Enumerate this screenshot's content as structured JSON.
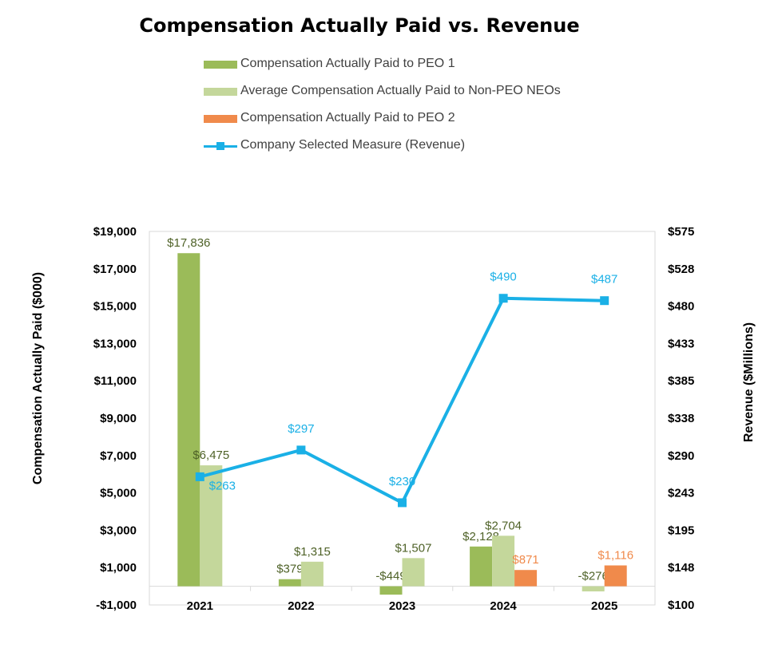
{
  "chart_data": {
    "type": "bar",
    "title": "Compensation Actually Paid vs. Revenue",
    "categories": [
      "2021",
      "2022",
      "2023",
      "2024",
      "2025"
    ],
    "ylabel": "Compensation Actually Paid ($000)",
    "y2label": "Revenue ($Millions)",
    "ylim": [
      -1000,
      19000
    ],
    "y2lim": [
      100,
      575
    ],
    "yticks": [
      "-$1,000",
      "$1,000",
      "$3,000",
      "$5,000",
      "$7,000",
      "$9,000",
      "$11,000",
      "$13,000",
      "$15,000",
      "$17,000",
      "$19,000"
    ],
    "y2ticks": [
      "$100",
      "$148",
      "$195",
      "$243",
      "$290",
      "$338",
      "$385",
      "$433",
      "$480",
      "$528",
      "$575"
    ],
    "legend_position": "top",
    "grid": false,
    "series": [
      {
        "name": "Compensation Actually Paid to PEO 1",
        "kind": "bar",
        "color": "#9bbb59",
        "values": [
          17836,
          379,
          -449,
          2128,
          null
        ],
        "labels": [
          "$17,836",
          "$379",
          "-$449",
          "$2,128",
          ""
        ]
      },
      {
        "name": "Average Compensation Actually Paid to Non-PEO NEOs",
        "kind": "bar",
        "color": "#c4d79b",
        "values": [
          6475,
          1315,
          1507,
          2704,
          -276
        ],
        "labels": [
          "$6,475",
          "$1,315",
          "$1,507",
          "$2,704",
          "-$276"
        ]
      },
      {
        "name": "Compensation Actually Paid to PEO 2",
        "kind": "bar",
        "color": "#f08a4b",
        "values": [
          null,
          null,
          null,
          871,
          1116
        ],
        "labels": [
          "",
          "",
          "",
          "$871",
          "$1,116"
        ]
      },
      {
        "name": "Company Selected Measure (Revenue)",
        "kind": "line",
        "axis": "right",
        "color": "#1ab0e6",
        "values": [
          263,
          297,
          230,
          490,
          487
        ],
        "labels": [
          "$263",
          "$297",
          "$230",
          "$490",
          "$487"
        ]
      }
    ]
  }
}
